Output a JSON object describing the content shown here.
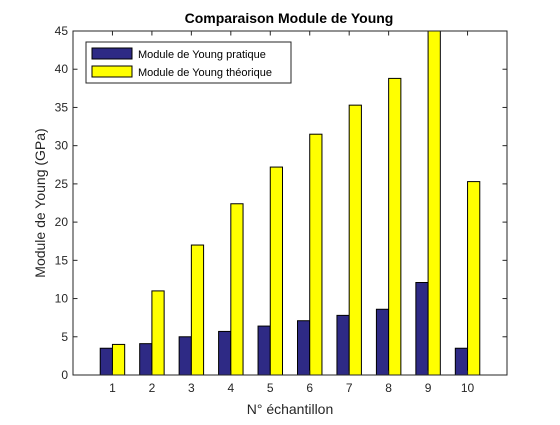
{
  "chart_data": {
    "type": "bar",
    "title": "Comparaison Module de Young",
    "xlabel": "N° échantillon",
    "ylabel": "Module de Young (GPa)",
    "categories": [
      "1",
      "2",
      "3",
      "4",
      "5",
      "6",
      "7",
      "8",
      "9",
      "10"
    ],
    "series": [
      {
        "name": "Module de Young pratique",
        "color": "#2e2a85",
        "values": [
          3.5,
          4.1,
          5.0,
          5.7,
          6.4,
          7.1,
          7.8,
          8.6,
          12.1,
          3.5
        ]
      },
      {
        "name": "Module de Young théorique",
        "color": "#ffff00",
        "values": [
          4.0,
          11.0,
          17.0,
          22.4,
          27.2,
          31.5,
          35.3,
          38.8,
          45.0,
          25.3
        ]
      }
    ],
    "ylim": [
      0,
      45
    ],
    "yticks": [
      "0",
      "5",
      "10",
      "15",
      "20",
      "25",
      "30",
      "35",
      "40",
      "45"
    ],
    "legend_position": "top-left",
    "grid": false,
    "box": true
  }
}
